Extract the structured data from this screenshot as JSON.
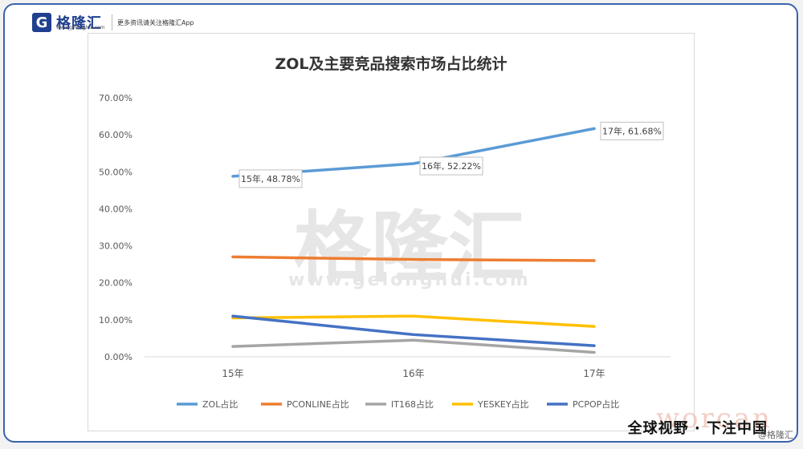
{
  "header": {
    "brand_logo": "G",
    "brand_name": "格隆汇",
    "brand_domain": "www.gelonghui.com",
    "tagline": "更多资讯请关注格隆汇App"
  },
  "footer": {
    "slogan": "全球视野 · 下注中国",
    "watermark": "@格隆汇",
    "bg_text": "worcan"
  },
  "background_watermark": {
    "main": "格隆汇",
    "sub": "www.gelonghui.com"
  },
  "chart_data": {
    "type": "line",
    "title": "ZOL及主要竞品搜索市场占比统计",
    "xlabel": "",
    "ylabel": "",
    "categories": [
      "15年",
      "16年",
      "17年"
    ],
    "ylim": [
      0,
      70
    ],
    "yticks": [
      0,
      10,
      20,
      30,
      40,
      50,
      60,
      70
    ],
    "ytick_labels": [
      "0.00%",
      "10.00%",
      "20.00%",
      "30.00%",
      "40.00%",
      "50.00%",
      "60.00%",
      "70.00%"
    ],
    "grid": false,
    "legend_position": "bottom",
    "series": [
      {
        "name": "ZOL占比",
        "values": [
          48.78,
          52.22,
          61.68
        ],
        "color": "#5b9bd5"
      },
      {
        "name": "PCONLINE占比",
        "values": [
          27.0,
          26.3,
          26.0
        ],
        "color": "#ed7d31"
      },
      {
        "name": "IT168占比",
        "values": [
          2.8,
          4.5,
          1.2
        ],
        "color": "#a5a5a5"
      },
      {
        "name": "YESKEY占比",
        "values": [
          10.5,
          11.0,
          8.2
        ],
        "color": "#ffc000"
      },
      {
        "name": "PCPOP占比",
        "values": [
          11.0,
          6.0,
          3.0
        ],
        "color": "#4472c4"
      }
    ],
    "data_labels": [
      {
        "series": 0,
        "index": 0,
        "text": "15年, 48.78%"
      },
      {
        "series": 0,
        "index": 1,
        "text": "16年, 52.22%"
      },
      {
        "series": 0,
        "index": 2,
        "text": "17年, 61.68%"
      }
    ]
  }
}
